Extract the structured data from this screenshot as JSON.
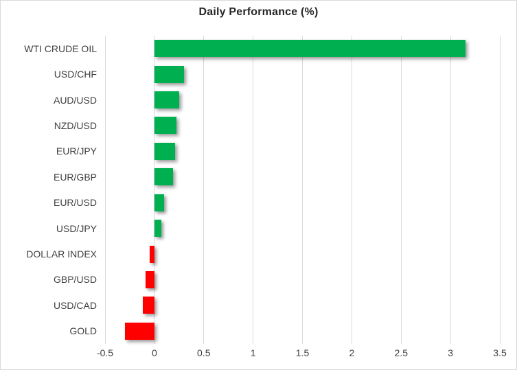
{
  "chart_data": {
    "type": "bar",
    "orientation": "horizontal",
    "title": "Daily Performance (%)",
    "categories": [
      "WTI CRUDE OIL",
      "USD/CHF",
      "AUD/USD",
      "NZD/USD",
      "EUR/JPY",
      "EUR/GBP",
      "EUR/USD",
      "USD/JPY",
      "DOLLAR INDEX",
      "GBP/USD",
      "USD/CAD",
      "GOLD"
    ],
    "values": [
      3.15,
      0.3,
      0.25,
      0.22,
      0.21,
      0.19,
      0.1,
      0.07,
      -0.05,
      -0.09,
      -0.12,
      -0.3
    ],
    "xlabel": "",
    "ylabel": "",
    "xlim": [
      -0.5,
      3.5
    ],
    "xticks": [
      -0.5,
      0,
      0.5,
      1,
      1.5,
      2,
      2.5,
      3,
      3.5
    ],
    "xtick_labels": [
      "-0.5",
      "0",
      "0.5",
      "1",
      "1.5",
      "2",
      "2.5",
      "3",
      "3.5"
    ],
    "grid": true,
    "legend": "none",
    "colors": {
      "positive": "#00B050",
      "negative": "#FF0000",
      "gridline": "#D9D9D9",
      "axis_text": "#404040",
      "title_text": "#262626"
    }
  }
}
